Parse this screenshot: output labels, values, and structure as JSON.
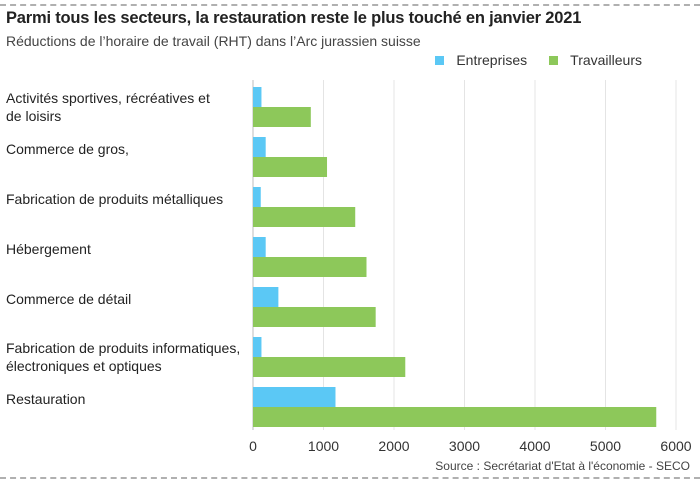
{
  "chart_data": {
    "type": "bar",
    "orientation": "horizontal",
    "title": "Parmi tous les secteurs, la restauration reste le plus touché en janvier 2021",
    "subtitle": "Réductions de l’horaire de travail (RHT) dans l’Arc jurassien suisse",
    "categories": [
      "Activités sportives, récréatives et\nde loisirs",
      "Commerce de gros,",
      "Fabrication de produits métalliques",
      "Hébergement",
      "Commerce de détail",
      "Fabrication de produits informatiques,\nélectroniques et optiques",
      "Restauration"
    ],
    "series": [
      {
        "name": "Entreprises",
        "color": "#5bc8f5",
        "values": [
          120,
          180,
          110,
          180,
          360,
          120,
          1170
        ]
      },
      {
        "name": "Travailleurs",
        "color": "#8dc85a",
        "values": [
          820,
          1050,
          1450,
          1610,
          1740,
          2160,
          5720
        ]
      }
    ],
    "xlim": [
      0,
      6000
    ],
    "xticks": [
      0,
      1000,
      2000,
      3000,
      4000,
      5000,
      6000
    ],
    "grid": true,
    "legend": "top-right",
    "source": "Source : Secrétariat d'Etat à l'économie - SECO"
  }
}
